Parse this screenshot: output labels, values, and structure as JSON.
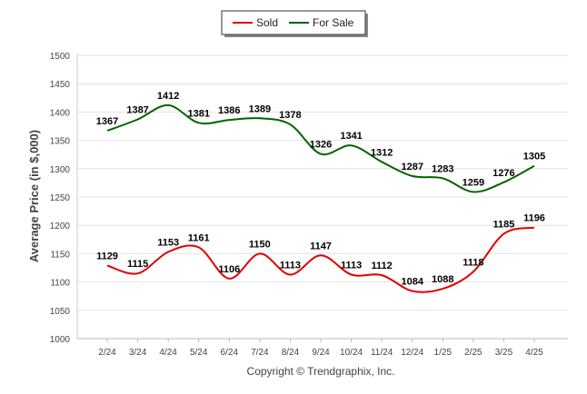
{
  "chart_data": {
    "type": "line",
    "categories": [
      "2/24",
      "3/24",
      "4/24",
      "5/24",
      "6/24",
      "7/24",
      "8/24",
      "9/24",
      "10/24",
      "11/24",
      "12/24",
      "1/25",
      "2/25",
      "3/25",
      "4/25"
    ],
    "series": [
      {
        "name": "Sold",
        "color": "#e00000",
        "values": [
          1129,
          1115,
          1153,
          1161,
          1106,
          1150,
          1113,
          1147,
          1113,
          1112,
          1084,
          1088,
          1118,
          1185,
          1196
        ]
      },
      {
        "name": "For Sale",
        "color": "#006400",
        "values": [
          1367,
          1387,
          1412,
          1381,
          1386,
          1389,
          1378,
          1326,
          1341,
          1312,
          1287,
          1283,
          1259,
          1276,
          1305
        ]
      }
    ],
    "ylabel": "Average Price (in $,000)",
    "xlabel": "",
    "ylim": [
      1000,
      1500
    ],
    "yticks": [
      1000,
      1050,
      1100,
      1150,
      1200,
      1250,
      1300,
      1350,
      1400,
      1450,
      1500
    ],
    "grid": true,
    "legend_position": "top-center"
  },
  "footer": {
    "copyright": "Copyright © Trendgraphix, Inc."
  }
}
